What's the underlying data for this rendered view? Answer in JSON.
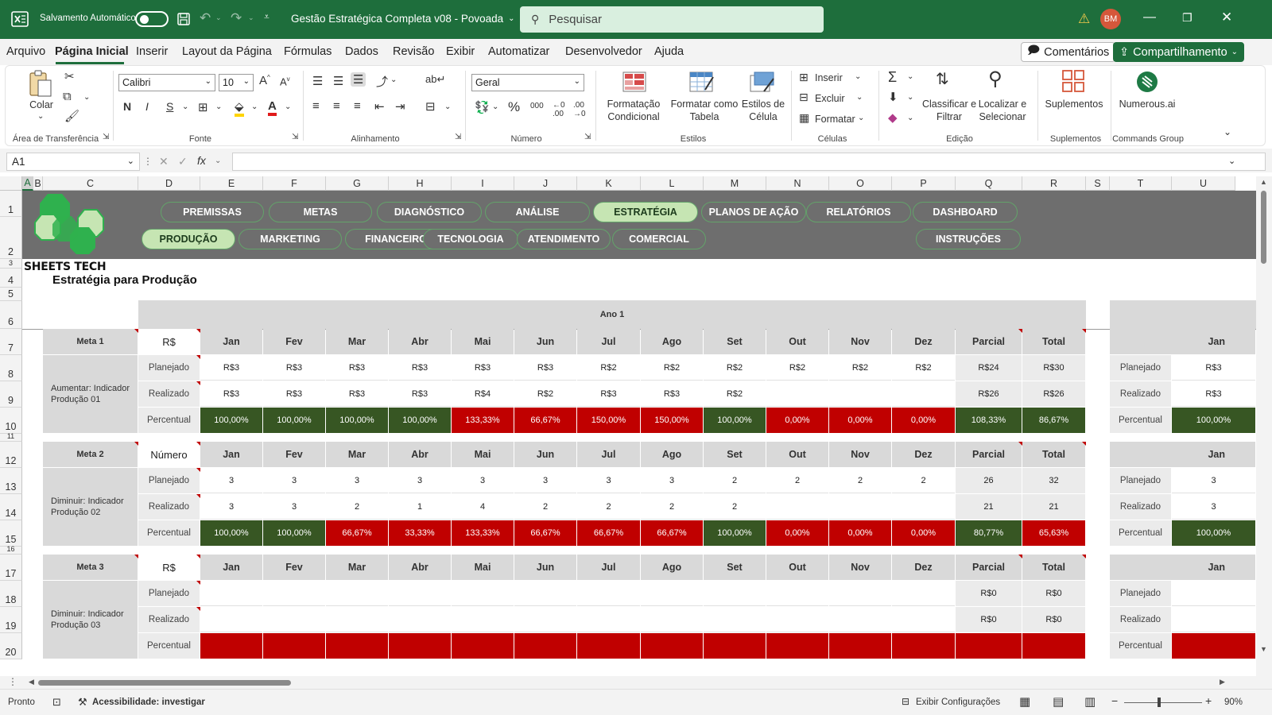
{
  "titlebar": {
    "autosave_label": "Salvamento Automático",
    "document_title": "Gestão Estratégica Completa v08 - Povoada",
    "search_placeholder": "Pesquisar",
    "user_initials": "BM"
  },
  "menu": [
    "Arquivo",
    "Página Inicial",
    "Inserir",
    "Layout da Página",
    "Fórmulas",
    "Dados",
    "Revisão",
    "Exibir",
    "Automatizar",
    "Desenvolvedor",
    "Ajuda"
  ],
  "top_buttons": {
    "comments": "Comentários",
    "share": "Compartilhamento"
  },
  "ribbon": {
    "paste": "Colar",
    "clipboard": "Área de Transferência",
    "font_name": "Calibri",
    "font_size": "10",
    "font_group": "Fonte",
    "bold": "N",
    "italic": "I",
    "underline": "S",
    "align_group": "Alinhamento",
    "number_format": "Geral",
    "number_group": "Número",
    "cond_format": "Formatação Condicional",
    "format_table": "Formatar como Tabela",
    "cell_styles": "Estilos de Célula",
    "styles_group": "Estilos",
    "insert": "Inserir",
    "delete": "Excluir",
    "format": "Formatar",
    "cells_group": "Células",
    "sort_filter": "Classificar e Filtrar",
    "find_select": "Localizar e Selecionar",
    "edit_group": "Edição",
    "addins": "Suplementos",
    "addins_group": "Suplementos",
    "numerous": "Numerous.ai",
    "commands_group": "Commands Group"
  },
  "formula_bar": {
    "name_box": "A1",
    "formula": ""
  },
  "columns": [
    "A",
    "B",
    "C",
    "D",
    "E",
    "F",
    "G",
    "H",
    "I",
    "J",
    "K",
    "L",
    "M",
    "N",
    "O",
    "P",
    "Q",
    "R",
    "S",
    "T",
    "U"
  ],
  "rows": [
    "1",
    "2",
    "3",
    "4",
    "5",
    "6",
    "7",
    "8",
    "9",
    "10",
    "11",
    "12",
    "13",
    "14",
    "15",
    "16",
    "17",
    "18",
    "19",
    "20"
  ],
  "banner": {
    "brand": "SHEETS TECH",
    "nav_row1": [
      "PREMISSAS",
      "METAS",
      "DIAGNÓSTICO",
      "ANÁLISE",
      "ESTRATÉGIA",
      "PLANOS DE AÇÃO",
      "RELATÓRIOS",
      "DASHBOARD"
    ],
    "nav_row2": [
      "PRODUÇÃO",
      "MARKETING",
      "FINANCEIRO",
      "TECNOLOGIA",
      "ATENDIMENTO",
      "COMERCIAL",
      "INSTRUÇÕES"
    ],
    "active_row1": "ESTRATÉGIA",
    "active_row2": "PRODUÇÃO"
  },
  "sheet": {
    "title": "Estratégia para Produção",
    "year_label": "Ano 1",
    "months": [
      "Jan",
      "Fev",
      "Mar",
      "Abr",
      "Mai",
      "Jun",
      "Jul",
      "Ago",
      "Set",
      "Out",
      "Nov",
      "Dez"
    ],
    "parcial": "Parcial",
    "total": "Total",
    "row_labels": [
      "Planejado",
      "Realizado",
      "Percentual"
    ],
    "metas": [
      {
        "name": "Meta 1",
        "unit": "R$",
        "desc": "Aumentar: Indicador Produção 01",
        "planejado": [
          "R$3",
          "R$3",
          "R$3",
          "R$3",
          "R$3",
          "R$3",
          "R$2",
          "R$2",
          "R$2",
          "R$2",
          "R$2",
          "R$2"
        ],
        "realizado": [
          "R$3",
          "R$3",
          "R$3",
          "R$3",
          "R$4",
          "R$2",
          "R$3",
          "R$3",
          "R$2",
          "",
          "",
          ""
        ],
        "percentual": [
          "100,00%",
          "100,00%",
          "100,00%",
          "100,00%",
          "133,33%",
          "66,67%",
          "150,00%",
          "150,00%",
          "100,00%",
          "0,00%",
          "0,00%",
          "0,00%"
        ],
        "status": [
          "g",
          "g",
          "g",
          "g",
          "r",
          "r",
          "r",
          "r",
          "g",
          "r",
          "r",
          "r"
        ],
        "parcial": {
          "planejado": "R$24",
          "realizado": "R$26",
          "percentual": "108,33%",
          "status": "g"
        },
        "total": {
          "planejado": "R$30",
          "realizado": "R$26",
          "percentual": "86,67%",
          "status": "g"
        },
        "next": {
          "month": "Jan",
          "planejado": "R$3",
          "realizado": "R$3",
          "percentual": "100,00%",
          "status": "g"
        }
      },
      {
        "name": "Meta 2",
        "unit": "Número",
        "desc": "Diminuir: Indicador Produção 02",
        "planejado": [
          "3",
          "3",
          "3",
          "3",
          "3",
          "3",
          "3",
          "3",
          "2",
          "2",
          "2",
          "2"
        ],
        "realizado": [
          "3",
          "3",
          "2",
          "1",
          "4",
          "2",
          "2",
          "2",
          "2",
          "",
          "",
          ""
        ],
        "percentual": [
          "100,00%",
          "100,00%",
          "66,67%",
          "33,33%",
          "133,33%",
          "66,67%",
          "66,67%",
          "66,67%",
          "100,00%",
          "0,00%",
          "0,00%",
          "0,00%"
        ],
        "status": [
          "g",
          "g",
          "r",
          "r",
          "r",
          "r",
          "r",
          "r",
          "g",
          "r",
          "r",
          "r"
        ],
        "parcial": {
          "planejado": "26",
          "realizado": "21",
          "percentual": "80,77%",
          "status": "g"
        },
        "total": {
          "planejado": "32",
          "realizado": "21",
          "percentual": "65,63%",
          "status": "r"
        },
        "next": {
          "month": "Jan",
          "planejado": "3",
          "realizado": "3",
          "percentual": "100,00%",
          "status": "g"
        }
      },
      {
        "name": "Meta 3",
        "unit": "R$",
        "desc": "Diminuir: Indicador Produção 03",
        "planejado": [
          "",
          "",
          "",
          "",
          "",
          "",
          "",
          "",
          "",
          "",
          "",
          ""
        ],
        "realizado": [
          "",
          "",
          "",
          "",
          "",
          "",
          "",
          "",
          "",
          "",
          "",
          ""
        ],
        "percentual": [
          "",
          "",
          "",
          "",
          "",
          "",
          "",
          "",
          "",
          "",
          "",
          ""
        ],
        "status": [
          "r",
          "r",
          "r",
          "r",
          "r",
          "r",
          "r",
          "r",
          "r",
          "r",
          "r",
          "r"
        ],
        "parcial": {
          "planejado": "R$0",
          "realizado": "R$0",
          "percentual": "",
          "status": "r"
        },
        "total": {
          "planejado": "R$0",
          "realizado": "R$0",
          "percentual": "",
          "status": "r"
        },
        "next": {
          "month": "Jan",
          "planejado": "",
          "realizado": "",
          "percentual": "",
          "status": "r"
        }
      }
    ]
  },
  "statusbar": {
    "ready": "Pronto",
    "accessibility": "Acessibilidade: investigar",
    "display_settings": "Exibir Configurações",
    "zoom": "90%"
  },
  "colors": {
    "accent": "#1e6e3c",
    "good": "#375623",
    "bad": "#c00000",
    "banner": "#6e6e6e",
    "nav_active": "#c6e5b3"
  }
}
